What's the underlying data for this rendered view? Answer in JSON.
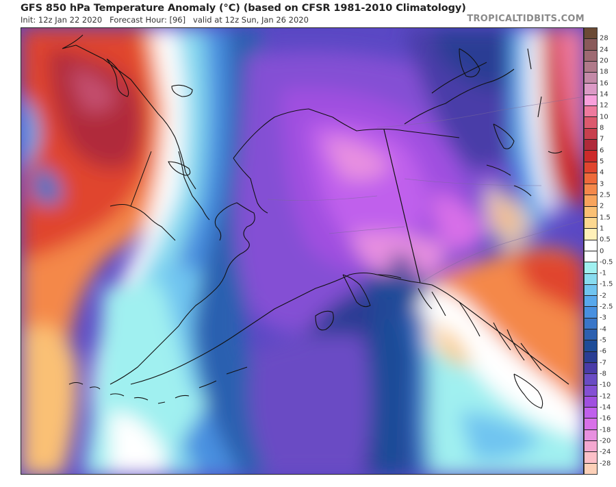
{
  "header": {
    "title": "GFS 850 hPa Temperature Anomaly (°C) (based on CFSR 1981-2010 Climatology)",
    "subtitle": "Init: 12z Jan 22 2020   Forecast Hour: [96]   valid at 12z Sun, Jan 26 2020",
    "brand": "TROPICALTIDBITS.COM"
  },
  "map": {
    "region": "Alaska / North Pacific / Eastern Siberia / NW Canada",
    "variable": "850 hPa Temperature Anomaly",
    "units": "°C"
  },
  "colorbar": {
    "labels": [
      "28",
      "24",
      "20",
      "18",
      "16",
      "14",
      "12",
      "10",
      "8",
      "7",
      "6",
      "5",
      "4",
      "3",
      "2.5",
      "2",
      "1.5",
      "1",
      "0.5",
      "0",
      "-0.5",
      "-1",
      "-1.5",
      "-2",
      "-2.5",
      "-3",
      "-4",
      "-5",
      "-6",
      "-7",
      "-8",
      "-10",
      "-12",
      "-14",
      "-16",
      "-18",
      "-20",
      "-24",
      "-28"
    ],
    "colors": [
      "#6b4a35",
      "#8a5a5a",
      "#9e6a72",
      "#b07a8a",
      "#c48aa8",
      "#dc9ac6",
      "#f8a0dc",
      "#ee7a9e",
      "#dc5a6e",
      "#c8404e",
      "#b02a3a",
      "#cc2a2a",
      "#e0452e",
      "#ee6a3a",
      "#f4884a",
      "#f8a45c",
      "#fac074",
      "#fcd890",
      "#fff0b8",
      "#ffffff",
      "#ffffff",
      "#a0f0f0",
      "#88dcf0",
      "#70c4f0",
      "#58a8ec",
      "#4890e0",
      "#3a76c8",
      "#2c60b0",
      "#1e4c98",
      "#2a3e94",
      "#4a3ca8",
      "#6a4cc4",
      "#8450d4",
      "#a050e0",
      "#c060ec",
      "#d870e8",
      "#e890e0",
      "#f4a8d0",
      "#fcc0c8",
      "#fcd0b8"
    ]
  },
  "chart_data": {
    "type": "heatmap",
    "title": "GFS 850 hPa Temperature Anomaly (°C) (based on CFSR 1981-2010 Climatology)",
    "subtitle": "Init: 12z Jan 22 2020   Forecast Hour: [96]   valid at 12z Sun, Jan 26 2020",
    "colorbar_ticks": [
      28,
      24,
      20,
      18,
      16,
      14,
      12,
      10,
      8,
      7,
      6,
      5,
      4,
      3,
      2.5,
      2,
      1.5,
      1,
      0.5,
      0,
      -0.5,
      -1,
      -1.5,
      -2,
      -2.5,
      -3,
      -4,
      -5,
      -6,
      -7,
      -8,
      -10,
      -12,
      -14,
      -16,
      -18,
      -20,
      -24,
      -28
    ],
    "features": [
      {
        "region": "Eastern Siberia (Chukotka interior)",
        "anomaly_range": [
          6,
          10
        ]
      },
      {
        "region": "Alaska interior & North Slope",
        "anomaly_range": [
          -20,
          -12
        ]
      },
      {
        "region": "Bering Sea",
        "anomaly_range": [
          -8,
          -4
        ]
      },
      {
        "region": "Gulf of Alaska (west)",
        "anomaly_range": [
          -8,
          -5
        ]
      },
      {
        "region": "Gulf of Alaska (east) / NE Pacific",
        "anomaly_range": [
          -2,
          0
        ]
      },
      {
        "region": "British Columbia / Yukon south",
        "anomaly_range": [
          1,
          5
        ]
      },
      {
        "region": "Hudson Bay / Nunavut west",
        "anomaly_range": [
          -12,
          -6
        ]
      },
      {
        "region": "Greenland-side east edge",
        "anomaly_range": [
          6,
          14
        ]
      },
      {
        "region": "NW Pacific south of Aleutians",
        "anomaly_range": [
          -1,
          2
        ]
      }
    ]
  }
}
